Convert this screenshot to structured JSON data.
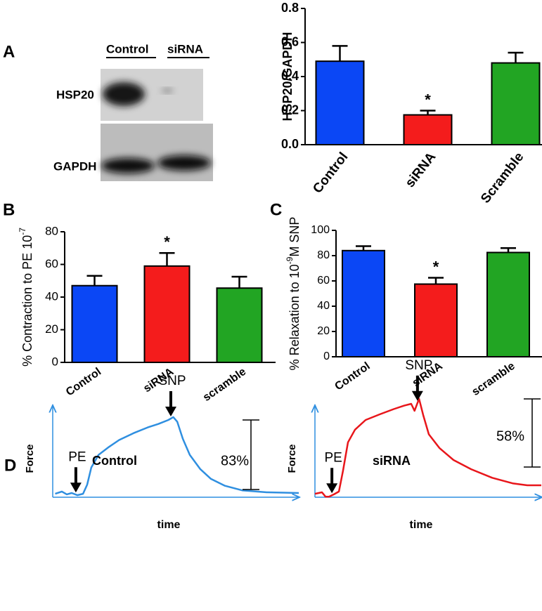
{
  "panel_labels": [
    "A",
    "B",
    "C",
    "D"
  ],
  "western_blot": {
    "lanes": [
      "Control",
      "siRNA"
    ],
    "rows": [
      "HSP20",
      "GAPDH"
    ]
  },
  "chart_data": [
    {
      "type": "bar",
      "y_label": {
        "text": "HSP20/GAPDH"
      },
      "categories": [
        "Control",
        "siRNA",
        "Scramble"
      ],
      "values": [
        0.49,
        0.175,
        0.48
      ],
      "errors": [
        0.09,
        0.025,
        0.06
      ],
      "colors": [
        "#0b47f5",
        "#f41c1c",
        "#22a523"
      ],
      "ylim": [
        0,
        0.8
      ],
      "yticks": [
        {
          "value": 0,
          "label": "0.0"
        },
        0.2,
        0.4,
        0.6,
        0.8
      ],
      "annotations": [
        {
          "text": "*",
          "category": "siRNA"
        }
      ]
    },
    {
      "type": "bar",
      "y_label": {
        "text": "% Contraction to PE 10",
        "superscript": "-7"
      },
      "categories": [
        "Control",
        "siRNA",
        "scramble"
      ],
      "values": [
        47,
        59,
        45.5
      ],
      "errors": [
        6,
        8,
        7
      ],
      "colors": [
        "#0b47f5",
        "#f41c1c",
        "#22a523"
      ],
      "ylim": [
        0,
        80
      ],
      "yticks": [
        0,
        20,
        40,
        60,
        80
      ],
      "annotations": [
        {
          "text": "*",
          "category": "siRNA"
        }
      ]
    },
    {
      "type": "bar",
      "y_label": {
        "text": "% Relaxation to 10",
        "superscript": "-9",
        "text_after": "M SNP"
      },
      "categories": [
        "Control",
        "siRNA",
        "scramble"
      ],
      "values": [
        84,
        57.5,
        82.5
      ],
      "errors": [
        3.5,
        5,
        3.5
      ],
      "colors": [
        "#0b47f5",
        "#f41c1c",
        "#22a523"
      ],
      "ylim": [
        0,
        100
      ],
      "yticks": [
        0,
        20,
        40,
        60,
        80,
        100
      ],
      "annotations": [
        {
          "text": "*",
          "category": "siRNA"
        }
      ]
    },
    {
      "type": "line",
      "title": "Control",
      "x_label": "time",
      "y_label": "Force",
      "color": "#2f8fe0",
      "xlim": [
        0,
        100
      ],
      "ylim": [
        0,
        100
      ],
      "x": [
        1,
        3.7,
        5.7,
        7.7,
        10,
        12.3,
        14,
        15.7,
        18.6,
        22.9,
        27,
        32.9,
        38.6,
        42.9,
        47,
        49,
        50.6,
        52.9,
        55.7,
        60,
        64.3,
        70,
        77,
        87,
        100
      ],
      "values": [
        3,
        5,
        2.5,
        3.7,
        1.8,
        3,
        11,
        26,
        37,
        44,
        50,
        56,
        61,
        64,
        67.5,
        70,
        66,
        51,
        37,
        24.5,
        16,
        10,
        6,
        4.3,
        3.7
      ],
      "annotations": [
        {
          "text": "PE",
          "x": 9.4
        },
        {
          "text": "SNP",
          "x": 48
        }
      ],
      "measure_label": "83%"
    },
    {
      "type": "line",
      "title": "siRNA",
      "x_label": "time",
      "y_label": "Force",
      "color": "#e8161b",
      "xlim": [
        0,
        100
      ],
      "ylim": [
        0,
        100
      ],
      "x": [
        0,
        3.1,
        4.7,
        6.2,
        8.4,
        10.6,
        12.4,
        14.6,
        17.7,
        22.4,
        28.6,
        34.8,
        39.4,
        42.5,
        44,
        46,
        47.8,
        50.3,
        55,
        61.2,
        69,
        78.3,
        87.6,
        93.8,
        100
      ],
      "values": [
        3,
        4.3,
        0.5,
        0.5,
        2.5,
        5,
        23,
        48,
        59,
        67.5,
        72.4,
        77,
        80,
        81.6,
        75.5,
        86,
        72,
        55,
        43,
        32.5,
        24.5,
        17,
        12,
        10.4,
        10.4
      ],
      "annotations": [
        {
          "text": "PE",
          "x": 7.5
        },
        {
          "text": "SNP",
          "x": 45.3
        }
      ],
      "measure_label": "58%"
    }
  ]
}
